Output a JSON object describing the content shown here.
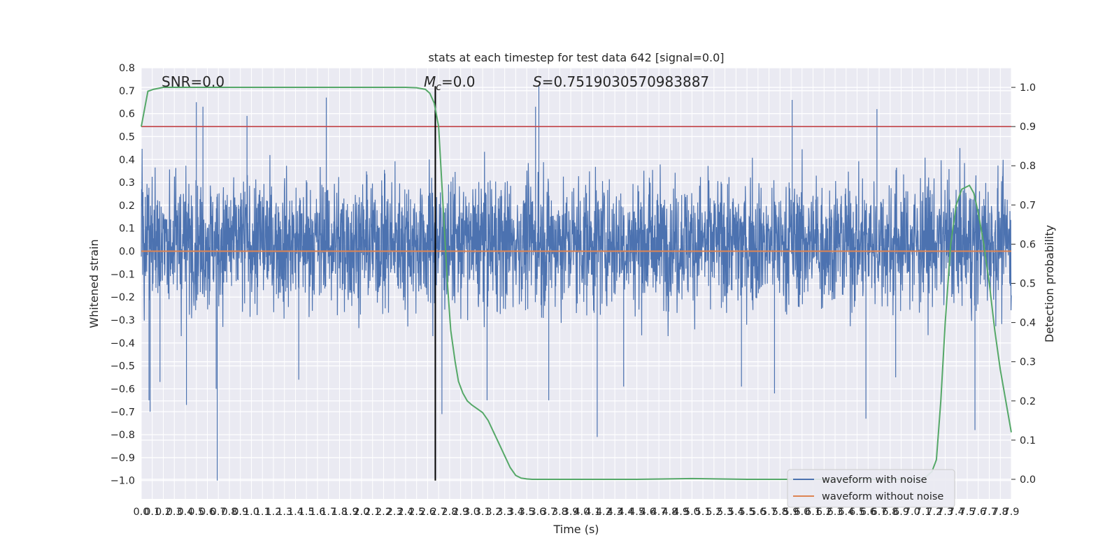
{
  "chart_data": {
    "type": "line",
    "title": "stats at each timestep for test data 642 [signal=0.0]",
    "xlabel": "Time (s)",
    "ylabel": "Whitened strain",
    "y2label": "Detection probability",
    "xlim": [
      0,
      7.9
    ],
    "ylim": [
      -1.08,
      0.8
    ],
    "y2lim": [
      -0.05,
      1.05
    ],
    "x_tick_step": 0.1,
    "y_ticks": [
      -1.0,
      -0.9,
      -0.8,
      -0.7,
      -0.6,
      -0.5,
      -0.4,
      -0.3,
      -0.2,
      -0.1,
      0.0,
      0.1,
      0.2,
      0.3,
      0.4,
      0.5,
      0.6,
      0.7,
      0.8
    ],
    "y2_ticks": [
      0.0,
      0.1,
      0.2,
      0.3,
      0.4,
      0.5,
      0.6,
      0.7,
      0.8,
      0.9,
      1.0
    ],
    "grid": true,
    "legend_position": "bottom-right",
    "annotations": {
      "snr_label": "SNR=0.0",
      "mc_symbol": "M",
      "mc_subscript": "c",
      "mc_value": "=0.0",
      "s_symbol": "S",
      "s_value": "=0.7519030570983887"
    },
    "threshold": {
      "value": 0.9,
      "axis": "right",
      "color": "#c44e52"
    },
    "marker_time": 2.67,
    "series": [
      {
        "name": "waveform with noise",
        "axis": "left",
        "color": "#4c72b0",
        "kind": "noise",
        "envelope_typical": [
          -0.32,
          0.4
        ],
        "envelope_extreme": [
          -1.0,
          0.72
        ],
        "spikes": [
          {
            "x": 0.07,
            "y": -0.65
          },
          {
            "x": 0.08,
            "y": -0.7
          },
          {
            "x": 0.17,
            "y": -0.57
          },
          {
            "x": 0.41,
            "y": -0.67
          },
          {
            "x": 0.5,
            "y": 0.65
          },
          {
            "x": 0.56,
            "y": 0.63
          },
          {
            "x": 0.68,
            "y": -0.6
          },
          {
            "x": 0.69,
            "y": -1.0
          },
          {
            "x": 0.96,
            "y": 0.59
          },
          {
            "x": 1.43,
            "y": -0.56
          },
          {
            "x": 1.68,
            "y": 0.67
          },
          {
            "x": 2.73,
            "y": -0.71
          },
          {
            "x": 3.14,
            "y": -0.65
          },
          {
            "x": 3.58,
            "y": 0.63
          },
          {
            "x": 3.61,
            "y": 0.72
          },
          {
            "x": 3.7,
            "y": -0.65
          },
          {
            "x": 4.14,
            "y": -0.81
          },
          {
            "x": 4.38,
            "y": -0.59
          },
          {
            "x": 5.45,
            "y": -0.59
          },
          {
            "x": 5.75,
            "y": -0.62
          },
          {
            "x": 5.91,
            "y": 0.66
          },
          {
            "x": 6.58,
            "y": -0.73
          },
          {
            "x": 6.68,
            "y": 0.62
          },
          {
            "x": 6.85,
            "y": -0.55
          },
          {
            "x": 7.57,
            "y": -0.78
          }
        ]
      },
      {
        "name": "waveform without noise",
        "axis": "left",
        "color": "#dd8452",
        "x": [
          0,
          7.9
        ],
        "y": [
          0.0,
          0.0
        ]
      },
      {
        "name": "detection probability",
        "axis": "right",
        "color": "#55a868",
        "x": [
          0.0,
          0.06,
          0.11,
          0.2,
          0.4,
          1.0,
          1.5,
          2.0,
          2.4,
          2.5,
          2.58,
          2.62,
          2.66,
          2.7,
          2.72,
          2.75,
          2.78,
          2.81,
          2.85,
          2.88,
          2.92,
          2.96,
          3.0,
          3.05,
          3.1,
          3.15,
          3.2,
          3.25,
          3.3,
          3.35,
          3.4,
          3.45,
          3.5,
          3.55,
          3.6,
          3.7,
          4.0,
          4.5,
          5.0,
          5.5,
          6.0,
          6.5,
          6.9,
          7.1,
          7.18,
          7.22,
          7.26,
          7.3,
          7.35,
          7.4,
          7.45,
          7.52,
          7.56,
          7.6,
          7.65,
          7.7,
          7.75,
          7.8,
          7.85,
          7.9
        ],
        "y": [
          0.9,
          0.99,
          0.995,
          1.0,
          1.0,
          1.0,
          1.0,
          1.0,
          1.0,
          0.999,
          0.995,
          0.985,
          0.96,
          0.9,
          0.8,
          0.65,
          0.5,
          0.38,
          0.3,
          0.25,
          0.22,
          0.2,
          0.19,
          0.18,
          0.17,
          0.15,
          0.12,
          0.09,
          0.06,
          0.03,
          0.01,
          0.003,
          0.001,
          0.0,
          0.0,
          0.0,
          0.0,
          0.0,
          0.002,
          0.0,
          0.0,
          0.0,
          0.0,
          0.0,
          0.02,
          0.05,
          0.2,
          0.4,
          0.6,
          0.7,
          0.74,
          0.75,
          0.73,
          0.68,
          0.6,
          0.5,
          0.38,
          0.28,
          0.2,
          0.12
        ]
      }
    ]
  }
}
